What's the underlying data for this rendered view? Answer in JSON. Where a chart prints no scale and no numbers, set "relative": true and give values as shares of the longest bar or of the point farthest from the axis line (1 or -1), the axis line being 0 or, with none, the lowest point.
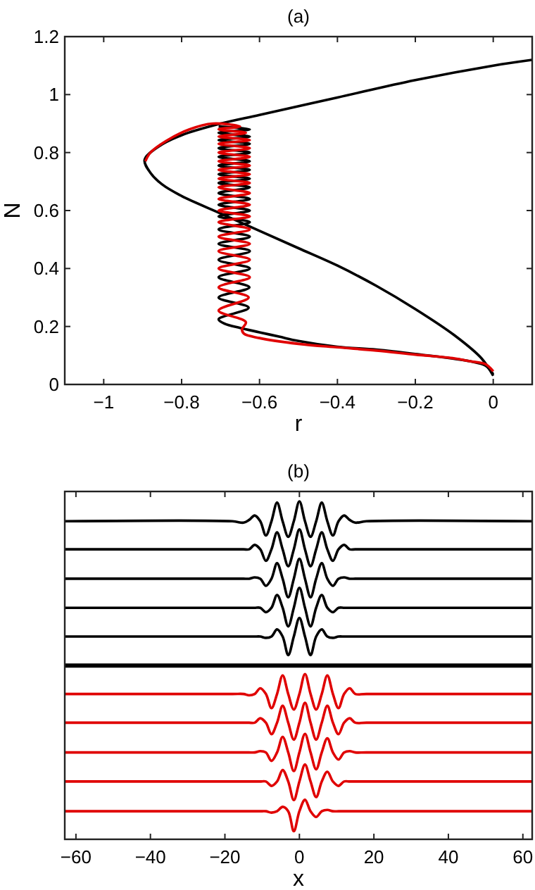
{
  "chart_data": [
    {
      "type": "line",
      "title": "(a)",
      "xlabel": "r",
      "ylabel": "N",
      "xlim": [
        -1.1,
        0.1
      ],
      "ylim": [
        0,
        1.2
      ],
      "xticks": [
        {
          "value": -1,
          "label": "−1"
        },
        {
          "value": -0.8,
          "label": "−0.8"
        },
        {
          "value": -0.6,
          "label": "−0.6"
        },
        {
          "value": -0.4,
          "label": "−0.4"
        },
        {
          "value": -0.2,
          "label": "−0.2"
        },
        0
      ],
      "yticks": [
        0,
        0.2,
        0.4,
        0.6,
        0.8,
        1,
        1.2
      ],
      "series": [
        {
          "color": "#000000",
          "x": [
            0.1,
            0,
            -0.2,
            -0.4,
            -0.6,
            -0.7,
            -0.8,
            -0.86,
            -0.895,
            -0.88,
            -0.85,
            -0.8,
            -0.7,
            -0.6,
            -0.5,
            -0.4,
            -0.3,
            -0.2,
            -0.1,
            -0.03,
            0
          ],
          "values": [
            1.12,
            1.1,
            1.05,
            0.99,
            0.93,
            0.9,
            0.86,
            0.82,
            0.775,
            0.73,
            0.69,
            0.65,
            0.59,
            0.53,
            0.47,
            0.41,
            0.34,
            0.26,
            0.17,
            0.09,
            0.03
          ]
        },
        {
          "color": "#000000",
          "x": [
            0,
            -0.02,
            -0.06,
            -0.2,
            -0.3,
            -0.4,
            -0.5,
            -0.55,
            -0.6,
            -0.65,
            -0.69,
            -0.705,
            -0.628,
            -0.705,
            -0.626,
            -0.705,
            -0.625,
            -0.705,
            -0.625,
            -0.705,
            -0.625,
            -0.705,
            -0.625,
            -0.705,
            -0.625,
            -0.705,
            -0.625,
            -0.705,
            -0.625,
            -0.705,
            -0.625,
            -0.705,
            -0.625,
            -0.705,
            -0.625,
            -0.705,
            -0.625,
            -0.705,
            -0.625,
            -0.705,
            -0.625,
            -0.705,
            -0.625,
            -0.705
          ],
          "values": [
            0.035,
            0.065,
            0.08,
            0.105,
            0.12,
            0.13,
            0.15,
            0.165,
            0.18,
            0.195,
            0.21,
            0.225,
            0.265,
            0.3,
            0.335,
            0.37,
            0.4,
            0.43,
            0.46,
            0.485,
            0.51,
            0.535,
            0.56,
            0.58,
            0.6,
            0.62,
            0.64,
            0.66,
            0.68,
            0.695,
            0.71,
            0.725,
            0.74,
            0.755,
            0.77,
            0.785,
            0.8,
            0.815,
            0.83,
            0.843,
            0.855,
            0.868,
            0.88,
            0.89
          ]
        },
        {
          "color": "#e00000",
          "x": [
            0,
            -0.02,
            -0.06,
            -0.1,
            -0.2,
            -0.3,
            -0.4,
            -0.5,
            -0.6,
            -0.64,
            -0.645,
            -0.635,
            -0.705,
            -0.628,
            -0.705,
            -0.625,
            -0.705,
            -0.625,
            -0.705,
            -0.625,
            -0.705,
            -0.625,
            -0.705,
            -0.625,
            -0.705,
            -0.625,
            -0.705,
            -0.625,
            -0.705,
            -0.625,
            -0.705,
            -0.625,
            -0.705,
            -0.625,
            -0.705,
            -0.625,
            -0.705,
            -0.625,
            -0.705,
            -0.625,
            -0.705,
            -0.635,
            -0.705,
            -0.65,
            -0.72,
            -0.78,
            -0.84,
            -0.88,
            -0.893
          ],
          "values": [
            0.045,
            0.07,
            0.08,
            0.09,
            0.103,
            0.117,
            0.128,
            0.14,
            0.16,
            0.175,
            0.19,
            0.215,
            0.255,
            0.3,
            0.335,
            0.37,
            0.4,
            0.43,
            0.46,
            0.485,
            0.51,
            0.535,
            0.56,
            0.58,
            0.6,
            0.62,
            0.64,
            0.66,
            0.68,
            0.695,
            0.71,
            0.725,
            0.74,
            0.755,
            0.77,
            0.785,
            0.8,
            0.815,
            0.83,
            0.843,
            0.855,
            0.868,
            0.88,
            0.89,
            0.9,
            0.88,
            0.84,
            0.8,
            0.77
          ]
        }
      ]
    },
    {
      "type": "line",
      "title": "(b)",
      "xlabel": "x",
      "relative": true,
      "tick_labels": "x",
      "xlim": [
        -63,
        62.5
      ],
      "xticks": [
        {
          "value": -60,
          "label": "−60"
        },
        {
          "value": -40,
          "label": "−40"
        },
        {
          "value": -20,
          "label": "−20"
        },
        0,
        20,
        40,
        60
      ],
      "x": [
        -63,
        -18,
        -15,
        -13.5,
        -12,
        -10.5,
        -9,
        -7.5,
        -6,
        -4.5,
        -3,
        -1.5,
        0,
        1.5,
        3,
        4.5,
        6,
        7.5,
        9,
        10.5,
        12,
        13.5,
        15,
        18,
        62.5
      ],
      "ref_lines": [
        {
          "axis": "y",
          "value": 0.514,
          "color": "#000000"
        }
      ],
      "series": [
        {
          "color": "#000000",
          "values": [
            0.941,
            0.941,
            0.937,
            0.945,
            0.958,
            0.941,
            0.899,
            0.941,
            0.996,
            0.941,
            0.895,
            0.941,
            1.0,
            0.941,
            0.895,
            0.941,
            0.996,
            0.941,
            0.899,
            0.941,
            0.958,
            0.945,
            0.937,
            0.941,
            0.941
          ]
        },
        {
          "color": "#000000",
          "values": [
            0.858,
            0.858,
            0.858,
            0.858,
            0.871,
            0.858,
            0.824,
            0.858,
            0.908,
            0.858,
            0.808,
            0.858,
            0.917,
            0.858,
            0.808,
            0.858,
            0.908,
            0.858,
            0.824,
            0.858,
            0.871,
            0.858,
            0.858,
            0.858,
            0.858
          ]
        },
        {
          "color": "#000000",
          "values": [
            0.771,
            0.771,
            0.771,
            0.771,
            0.775,
            0.771,
            0.75,
            0.771,
            0.817,
            0.771,
            0.716,
            0.771,
            0.83,
            0.771,
            0.716,
            0.771,
            0.817,
            0.771,
            0.75,
            0.771,
            0.775,
            0.771,
            0.771,
            0.771,
            0.771
          ]
        },
        {
          "color": "#000000",
          "values": [
            0.685,
            0.685,
            0.685,
            0.685,
            0.685,
            0.685,
            0.672,
            0.685,
            0.723,
            0.685,
            0.63,
            0.685,
            0.744,
            0.685,
            0.63,
            0.685,
            0.723,
            0.685,
            0.672,
            0.685,
            0.685,
            0.685,
            0.685,
            0.685,
            0.685
          ]
        },
        {
          "color": "#000000",
          "values": [
            0.6,
            0.6,
            0.6,
            0.6,
            0.6,
            0.6,
            0.596,
            0.6,
            0.621,
            0.6,
            0.545,
            0.6,
            0.655,
            0.6,
            0.545,
            0.6,
            0.621,
            0.6,
            0.596,
            0.6,
            0.6,
            0.6,
            0.6,
            0.6,
            0.6
          ]
        },
        {
          "color": "#e00000",
          "values": [
            0.43,
            0.43,
            0.43,
            0.426,
            0.43,
            0.447,
            0.43,
            0.388,
            0.43,
            0.485,
            0.43,
            0.384,
            0.43,
            0.489,
            0.43,
            0.384,
            0.43,
            0.485,
            0.43,
            0.388,
            0.43,
            0.447,
            0.43,
            0.43,
            0.43
          ]
        },
        {
          "color": "#e00000",
          "values": [
            0.345,
            0.345,
            0.345,
            0.345,
            0.345,
            0.358,
            0.345,
            0.311,
            0.345,
            0.395,
            0.345,
            0.295,
            0.345,
            0.404,
            0.345,
            0.295,
            0.345,
            0.395,
            0.345,
            0.311,
            0.345,
            0.358,
            0.345,
            0.345,
            0.345
          ]
        },
        {
          "color": "#e00000",
          "values": [
            0.257,
            0.257,
            0.257,
            0.257,
            0.257,
            0.261,
            0.257,
            0.232,
            0.257,
            0.303,
            0.257,
            0.202,
            0.257,
            0.312,
            0.257,
            0.207,
            0.257,
            0.299,
            0.257,
            0.236,
            0.257,
            0.261,
            0.257,
            0.257,
            0.257
          ]
        },
        {
          "color": "#e00000",
          "values": [
            0.171,
            0.171,
            0.171,
            0.171,
            0.171,
            0.171,
            0.171,
            0.158,
            0.171,
            0.205,
            0.171,
            0.116,
            0.171,
            0.221,
            0.171,
            0.125,
            0.171,
            0.2,
            0.171,
            0.158,
            0.171,
            0.171,
            0.171,
            0.171,
            0.171
          ]
        },
        {
          "color": "#e00000",
          "values": [
            0.083,
            0.083,
            0.083,
            0.083,
            0.083,
            0.083,
            0.083,
            0.079,
            0.083,
            0.096,
            0.083,
            0.024,
            0.083,
            0.117,
            0.083,
            0.066,
            0.083,
            0.087,
            0.083,
            0.083,
            0.083,
            0.083,
            0.083,
            0.083,
            0.083
          ]
        }
      ]
    }
  ]
}
